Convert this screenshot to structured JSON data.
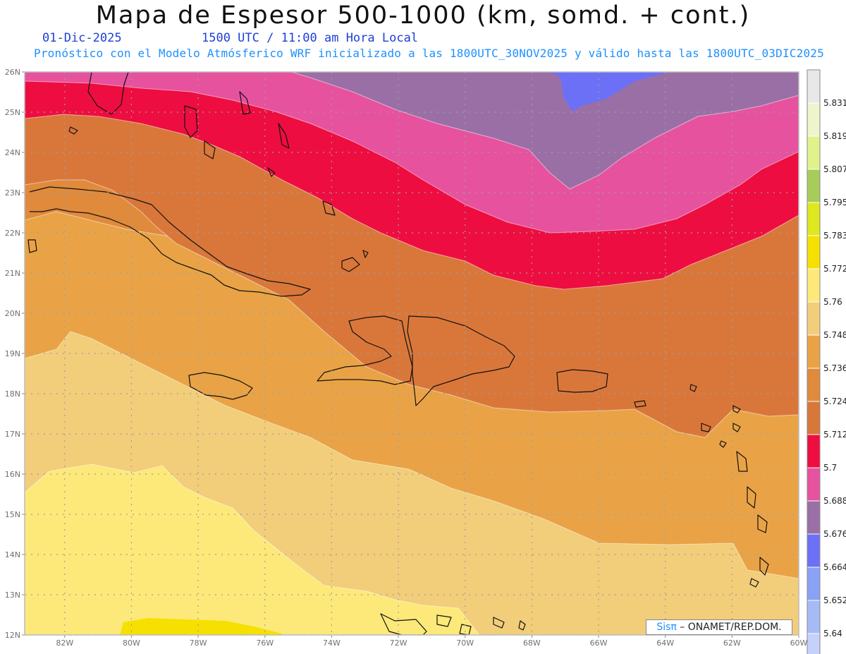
{
  "header": {
    "title": "Mapa de Espesor 500-1000 (km, somd. + cont.)",
    "date": "01-Dic-2025",
    "time": "1500 UTC / 11:00 am Hora Local",
    "subtitle": "Pronóstico con el Modelo Atmósferico WRF inicializado a las 1800UTC_30NOV2025 y válido hasta las  1800UTC_03DIC2025"
  },
  "axes": {
    "lat_labels": [
      "26N",
      "25N",
      "24N",
      "23N",
      "22N",
      "21N",
      "20N",
      "19N",
      "18N",
      "17N",
      "16N",
      "15N",
      "14N",
      "13N",
      "12N"
    ],
    "lon_labels": [
      "82W",
      "80W",
      "78W",
      "76W",
      "74W",
      "72W",
      "70W",
      "68W",
      "66W",
      "64W",
      "62W",
      "60W"
    ],
    "lat_range": [
      12,
      26
    ],
    "lon_range": [
      -83.2,
      -60
    ]
  },
  "colorbar": {
    "labels": [
      "5.831",
      "5.819",
      "5.807",
      "5.795",
      "5.783",
      "5.772",
      "5.76",
      "5.748",
      "5.736",
      "5.724",
      "5.712",
      "5.7",
      "5.688",
      "5.676",
      "5.664",
      "5.652",
      "5.64"
    ],
    "colors": [
      "#e8e8e8",
      "#eef5cc",
      "#dff28c",
      "#a8cc5a",
      "#dde81e",
      "#f5e000",
      "#fce97a",
      "#f2cd7a",
      "#e9a346",
      "#e08a3c",
      "#d9773a",
      "#ee0d40",
      "#e6529e",
      "#9a6fa6",
      "#6c70f6",
      "#8aa2f4",
      "#a6baf5",
      "#c5d1fa"
    ]
  },
  "credit": {
    "sis": "Sisπ",
    "rest": " – ONAMET/REP.DOM."
  }
}
